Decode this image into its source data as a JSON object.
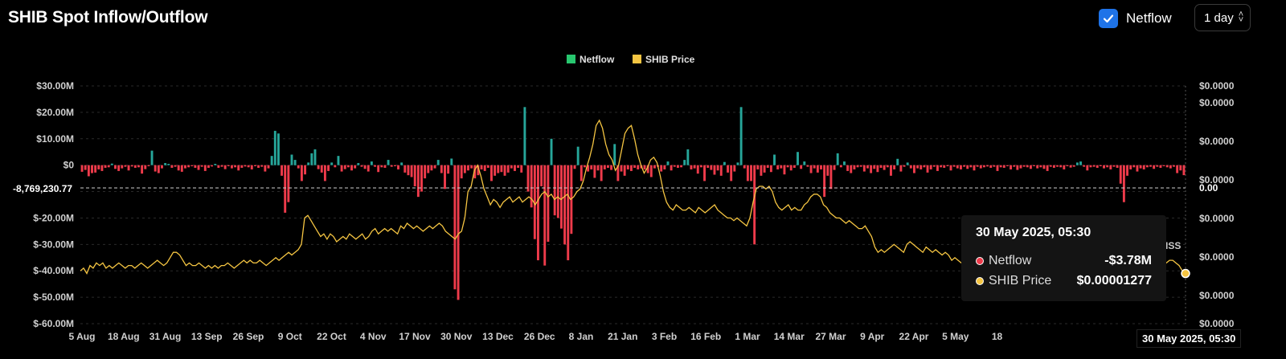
{
  "header": {
    "title": "SHIB Spot Inflow/Outflow",
    "netflow_toggle_label": "Netflow",
    "interval_value": "1 day"
  },
  "colors": {
    "positive": "#26a69a",
    "negative": "#ef3b4b",
    "legend_netflow": "#28c76f",
    "price": "#f5c542",
    "grid": "#2a2a2a",
    "checkbox": "#1e73e8"
  },
  "tooltip": {
    "time": "30 May 2025, 05:30",
    "rows": [
      {
        "name": "Netflow",
        "value": "-$3.78M",
        "color": "#ef3b4b"
      },
      {
        "name": "SHIB Price",
        "value": "$0.00001277",
        "color": "#f5c542"
      }
    ]
  },
  "crosshair": {
    "x_label": "30 May 2025, 05:30",
    "y_left_label": "-8,769,230.77",
    "y_right_label": "0.00",
    "edge_label": "ISS"
  },
  "chart_data": {
    "type": "bar",
    "title": "SHIB Spot Inflow/Outflow",
    "legend": [
      "Netflow",
      "SHIB Price"
    ],
    "legend_position": "top-center",
    "grid": true,
    "y_left": {
      "ticks": [
        "$30.00M",
        "$20.00M",
        "$10.00M",
        "$0",
        "$-10.00M",
        "$-20.00M",
        "$-30.00M",
        "$-40.00M",
        "$-50.00M",
        "$-60.00M"
      ],
      "range": [
        -60,
        30
      ],
      "unit": "M USD"
    },
    "y_right": {
      "ticks": [
        "$0.0000",
        "$0.0000",
        "$0.0000",
        "$0.0000",
        "$0.0000",
        "$0.0000",
        "$0.0000",
        "$0.0000"
      ]
    },
    "x_ticks": [
      "5 Aug",
      "18 Aug",
      "31 Aug",
      "13 Sep",
      "26 Sep",
      "9 Oct",
      "22 Oct",
      "4 Nov",
      "17 Nov",
      "30 Nov",
      "13 Dec",
      "26 Dec",
      "8 Jan",
      "21 Jan",
      "3 Feb",
      "16 Feb",
      "1 Mar",
      "14 Mar",
      "27 Mar",
      "9 Apr",
      "22 Apr",
      "5 May",
      "18"
    ],
    "netflow_series": {
      "name": "Netflow",
      "values": [
        -2.5,
        -1.8,
        -4.2,
        -3.0,
        -2.8,
        -1.6,
        -2.2,
        -1.0,
        -0.8,
        0.6,
        -1.4,
        -2.2,
        -1.2,
        -0.6,
        -2.0,
        -0.5,
        -1.0,
        -0.8,
        -3.2,
        -1.5,
        -0.4,
        5.5,
        -2.4,
        -3.0,
        -1.2,
        0.8,
        0.5,
        -1.0,
        -0.6,
        -2.0,
        -2.5,
        -1.2,
        -0.8,
        -0.4,
        -1.0,
        -1.8,
        -0.6,
        -2.2,
        -1.0,
        -0.5,
        0.5,
        -1.0,
        -0.6,
        -1.5,
        -0.4,
        -1.2,
        -0.8,
        -2.0,
        -1.0,
        -0.5,
        -0.8,
        -1.6,
        -0.4,
        -1.0,
        -0.6,
        -2.4,
        -1.2,
        3.5,
        13.0,
        12.0,
        -4.0,
        -18.0,
        -14.0,
        4.0,
        2.0,
        -1.2,
        -6.0,
        -3.5,
        1.0,
        4.5,
        6.0,
        -1.5,
        -2.8,
        -6.0,
        -2.2,
        1.0,
        -0.8,
        3.5,
        -2.4,
        -1.5,
        -0.8,
        -2.0,
        -1.2,
        0.8,
        -0.6,
        -1.4,
        -2.4,
        1.4,
        -0.6,
        -2.6,
        -0.8,
        -1.0,
        2.0,
        -0.6,
        -0.4,
        -1.6,
        1.0,
        -2.8,
        -3.8,
        -4.5,
        -8.0,
        -12.0,
        -10.0,
        -5.0,
        -3.0,
        -2.0,
        -1.2,
        2.0,
        -3.0,
        -9.0,
        -3.2,
        2.5,
        -47.0,
        -51.0,
        -5.0,
        -3.0,
        -2.0,
        -1.2,
        -5.0,
        -3.8,
        -1.6,
        -2.2,
        -1.0,
        -6.0,
        -4.0,
        -3.0,
        -2.6,
        -4.0,
        -2.8,
        -1.2,
        -2.2,
        -1.0,
        -2.8,
        22.0,
        -10.0,
        -16.0,
        -28.0,
        -36.0,
        -8.0,
        -38.0,
        -29.0,
        10.0,
        -19.0,
        -20.0,
        -24.0,
        -30.0,
        -36.0,
        -26.0,
        -1.4,
        7.0,
        -6.0,
        -0.8,
        -2.4,
        -1.6,
        -4.8,
        -2.0,
        -6.0,
        -1.6,
        -1.0,
        -1.8,
        8.0,
        -6.0,
        -2.4,
        -4.0,
        -1.6,
        -2.2,
        -1.0,
        -1.6,
        -1.2,
        -1.6,
        -3.0,
        -4.5,
        -1.2,
        -0.6,
        -2.4,
        -1.6,
        1.4,
        -2.0,
        -0.6,
        -1.0,
        -0.8,
        2.0,
        6.0,
        -1.6,
        -1.2,
        -3.2,
        -0.8,
        -6.0,
        -1.0,
        -1.8,
        -3.6,
        -2.0,
        -4.0,
        1.2,
        -2.8,
        -6.0,
        -2.4,
        1.0,
        22.0,
        -1.2,
        -6.0,
        -6.0,
        -30.0,
        -1.6,
        -4.0,
        -2.8,
        -1.0,
        -2.6,
        4.0,
        -1.6,
        -1.2,
        -3.5,
        -0.8,
        -2.0,
        -1.0,
        5.0,
        -1.4,
        1.4,
        -0.6,
        -3.0,
        -1.2,
        -2.8,
        -1.6,
        -12.0,
        -4.0,
        -9.0,
        -1.8,
        4.5,
        -0.8,
        1.4,
        -2.2,
        -3.0,
        -1.6,
        -0.8,
        -0.6,
        -2.4,
        -1.2,
        -3.0,
        -1.4,
        -2.6,
        -1.0,
        -1.8,
        -0.8,
        -4.0,
        -1.6,
        2.4,
        -2.4,
        -0.6,
        1.0,
        -1.2,
        -3.0,
        -1.2,
        -1.6,
        -0.8,
        -2.8,
        -1.6,
        -0.6,
        -2.2,
        -0.8,
        -1.0,
        -0.4,
        -2.0,
        -0.6,
        -1.2,
        -1.6,
        -0.6,
        -1.4,
        -0.8,
        -2.0,
        -0.6,
        -1.2,
        -0.8,
        -0.5,
        -1.0,
        -0.6,
        -2.2,
        -0.8,
        -1.0,
        -0.4,
        -1.6,
        -0.6,
        -1.8,
        -1.2,
        -0.6,
        -0.8,
        -1.4,
        -0.4,
        -1.2,
        -0.8,
        -1.4,
        -2.2,
        -0.6,
        -1.0,
        -0.6,
        -0.8,
        -1.6,
        -0.4,
        -0.9,
        -0.6,
        1.0,
        1.4,
        -0.6,
        -2.0,
        -0.8,
        -0.6,
        -1.0,
        -0.4,
        -1.2,
        -0.8,
        -1.6,
        -0.6,
        -1.0,
        -7.0,
        -14.0,
        -4.0,
        -1.6,
        -0.8,
        -2.4,
        -1.2,
        -1.6,
        -0.8,
        -0.6,
        -1.4,
        -0.6,
        -1.0,
        -0.4,
        -0.8,
        -1.2,
        -0.6,
        -3.0,
        -2.0,
        -3.78
      ]
    },
    "price_series": {
      "name": "SHIB Price",
      "values": [
        -40,
        -39,
        -41,
        -38,
        -39,
        -37,
        -38,
        -37,
        -39,
        -38,
        -39,
        -38,
        -37,
        -38,
        -39,
        -38,
        -38,
        -39,
        -38,
        -37,
        -38,
        -39,
        -38,
        -37,
        -36,
        -37,
        -38,
        -37,
        -35,
        -33,
        -33,
        -34,
        -36,
        -38,
        -37,
        -38,
        -38,
        -37,
        -38,
        -39,
        -38,
        -39,
        -38,
        -39,
        -38,
        -38,
        -37,
        -38,
        -39,
        -38,
        -37,
        -36,
        -37,
        -36,
        -37,
        -37,
        -36,
        -37,
        -38,
        -37,
        -36,
        -35,
        -36,
        -35,
        -34,
        -33,
        -34,
        -33,
        -32,
        -30,
        -20,
        -19,
        -21,
        -23,
        -25,
        -27,
        -26,
        -28,
        -26,
        -27,
        -29,
        -28,
        -27,
        -28,
        -26,
        -27,
        -28,
        -27,
        -26,
        -28,
        -27,
        -25,
        -24,
        -26,
        -25,
        -24,
        -25,
        -24,
        -25,
        -26,
        -23,
        -24,
        -22,
        -23,
        -24,
        -23,
        -24,
        -25,
        -24,
        -23,
        -24,
        -23,
        -22,
        -23,
        -25,
        -26,
        -27,
        -28,
        -26,
        -25,
        -20,
        -10,
        -8,
        -2,
        0,
        -4,
        -9,
        -12,
        -15,
        -13,
        -14,
        -16,
        -14,
        -13,
        -12,
        -14,
        -13,
        -12,
        -14,
        -13,
        -12,
        -13,
        -15,
        -13,
        -11,
        -10,
        -12,
        -11,
        -13,
        -12,
        -13,
        -12,
        -11,
        -13,
        -12,
        -10,
        -9,
        -6,
        -1,
        3,
        8,
        15,
        17,
        14,
        8,
        4,
        2,
        -2,
        0,
        6,
        12,
        14,
        15,
        10,
        4,
        0,
        -3,
        -1,
        2,
        3,
        1,
        -4,
        -10,
        -14,
        -16,
        -17,
        -15,
        -16,
        -17,
        -17,
        -16,
        -17,
        -18,
        -16,
        -17,
        -18,
        -17,
        -16,
        -15,
        -17,
        -18,
        -19,
        -20,
        -20,
        -21,
        -20,
        -21,
        -22,
        -23,
        -20,
        -14,
        -9,
        -8,
        -8,
        -9,
        -8,
        -10,
        -14,
        -16,
        -17,
        -16,
        -15,
        -17,
        -16,
        -17,
        -17,
        -15,
        -14,
        -12,
        -11,
        -11,
        -12,
        -15,
        -16,
        -18,
        -19,
        -20,
        -20,
        -21,
        -22,
        -21,
        -22,
        -23,
        -24,
        -24,
        -23,
        -25,
        -27,
        -31,
        -33,
        -32,
        -33,
        -32,
        -31,
        -30,
        -31,
        -32,
        -33,
        -30,
        -29,
        -30,
        -31,
        -32,
        -33,
        -31,
        -32,
        -33,
        -32,
        -33,
        -34,
        -33,
        -34,
        -36,
        -35,
        -36,
        -37,
        -38,
        -39,
        -40,
        -39,
        -40,
        -39,
        -37,
        -39,
        -40,
        -41,
        -42,
        -43,
        -42,
        -44,
        -45,
        -44,
        -43,
        -44,
        -43,
        -42,
        -41,
        -42,
        -43,
        -42,
        -41,
        -42,
        -41,
        -40,
        -39,
        -38,
        -40,
        -41,
        -42,
        -43,
        -43,
        -42,
        -43,
        -42,
        -41,
        -40,
        -39,
        -40,
        -41,
        -40,
        -39,
        -38,
        -39,
        -38,
        -37,
        -36,
        -37,
        -36,
        -35,
        -36,
        -37,
        -38,
        -39,
        -40,
        -41,
        -39,
        -38,
        -37,
        -36,
        -37,
        -36,
        -36,
        -37,
        -38,
        -40,
        -41
      ]
    }
  }
}
